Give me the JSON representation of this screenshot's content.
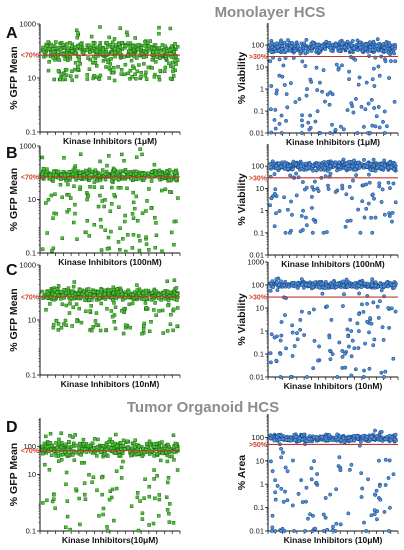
{
  "figure": {
    "title_top": "Monolayer HCS",
    "title_bottom": "Tumor Organoid HCS",
    "panel_letters": [
      "A",
      "B",
      "C",
      "D"
    ]
  },
  "colors": {
    "green_fill": "#4fc23a",
    "green_edge": "#1f6a12",
    "blue_fill": "#4f8fd9",
    "blue_edge": "#173f7a",
    "threshold": "#c0392b"
  },
  "chart_data": [
    {
      "id": "A-left",
      "type": "scatter",
      "ylabel": "% GFP Mean",
      "xlabel": "Kinase Inhibitors (1μM)",
      "yscale": "log",
      "ylim": [
        0.1,
        1000
      ],
      "yticks": [
        "0.1",
        "10",
        "1000"
      ],
      "threshold": {
        "value": 70,
        "label": "<70%"
      },
      "series": [
        {
          "color": "green",
          "n_points": 480,
          "bulk_range": [
            40,
            250
          ],
          "min_value": 8,
          "max_value": 900
        }
      ]
    },
    {
      "id": "A-right",
      "type": "scatter",
      "ylabel": "% Viability",
      "xlabel": "Kinase Inhibitors (1μM)",
      "yscale": "log",
      "ylim": [
        0.01,
        1000
      ],
      "yticks": [
        "0.01",
        "0.1",
        "1",
        "10",
        "100"
      ],
      "threshold": {
        "value": 30,
        "label": ">30%"
      },
      "series": [
        {
          "color": "blue",
          "n_points": 480,
          "bulk_range": [
            40,
            150
          ],
          "min_value": 0.01,
          "max_value": 200
        }
      ]
    },
    {
      "id": "B-left",
      "type": "scatter",
      "ylabel": "% GFP Mean",
      "xlabel": "Kinase Inhibitors (100nM)",
      "yscale": "log",
      "ylim": [
        0.1,
        1000
      ],
      "yticks": [
        "0.1",
        "10",
        "1000"
      ],
      "threshold": {
        "value": 70,
        "label": "<70%"
      },
      "series": [
        {
          "color": "green",
          "n_points": 480,
          "bulk_range": [
            45,
            150
          ],
          "min_value": 0.1,
          "max_value": 900
        }
      ]
    },
    {
      "id": "B-right",
      "type": "scatter",
      "ylabel": "% Viability",
      "xlabel": "Kinase Inhibitors (100nM)",
      "yscale": "log",
      "ylim": [
        0.01,
        1000
      ],
      "yticks": [
        "0.01",
        "0.1",
        "1",
        "10",
        "100"
      ],
      "threshold": {
        "value": 30,
        "label": ">30%"
      },
      "series": [
        {
          "color": "blue",
          "n_points": 480,
          "bulk_range": [
            60,
            180
          ],
          "min_value": 0.1,
          "max_value": 200
        }
      ]
    },
    {
      "id": "C-left",
      "type": "scatter",
      "ylabel": "% GFP Mean",
      "xlabel": "Kinase Inhibitors (10nM)",
      "yscale": "log",
      "ylim": [
        0.1,
        1000
      ],
      "yticks": [
        "0.1",
        "10",
        "1000"
      ],
      "threshold": {
        "value": 70,
        "label": "<70%"
      },
      "series": [
        {
          "color": "green",
          "n_points": 480,
          "bulk_range": [
            50,
            150
          ],
          "min_value": 3,
          "max_value": 300
        }
      ]
    },
    {
      "id": "C-right",
      "type": "scatter",
      "ylabel": "% Viability",
      "xlabel": "Kinase Inhibitors (10nM)",
      "yscale": "log",
      "ylim": [
        0.01,
        1000
      ],
      "yticks": [
        "0.01",
        "0.1",
        "1",
        "10",
        "100",
        "1000"
      ],
      "threshold": {
        "value": 30,
        "label": ">30%"
      },
      "series": [
        {
          "color": "blue",
          "n_points": 480,
          "bulk_range": [
            70,
            150
          ],
          "min_value": 0.01,
          "max_value": 200
        }
      ]
    },
    {
      "id": "D-left",
      "type": "scatter",
      "ylabel": "% GFP Mean",
      "xlabel": "Kinase Inhibitors(10μM)",
      "yscale": "log",
      "ylim": [
        0.1,
        1000
      ],
      "yticks": [
        "0.1",
        "10",
        "100"
      ],
      "threshold": {
        "value": 70,
        "label": "<70%"
      },
      "series": [
        {
          "color": "green",
          "n_points": 480,
          "bulk_range": [
            40,
            160
          ],
          "min_value": 0.1,
          "max_value": 300
        }
      ]
    },
    {
      "id": "D-right",
      "type": "scatter",
      "ylabel": "% Area",
      "xlabel": "Kinase Inhibitors (10μM)",
      "yscale": "log",
      "ylim": [
        0.01,
        1000
      ],
      "yticks": [
        "0.01",
        "0.1",
        "1",
        "10",
        "100"
      ],
      "threshold": {
        "value": 50,
        "label": ">50%"
      },
      "series": [
        {
          "color": "blue",
          "n_points": 480,
          "bulk_range": [
            60,
            140
          ],
          "min_value": 0.01,
          "max_value": 200
        }
      ]
    }
  ]
}
